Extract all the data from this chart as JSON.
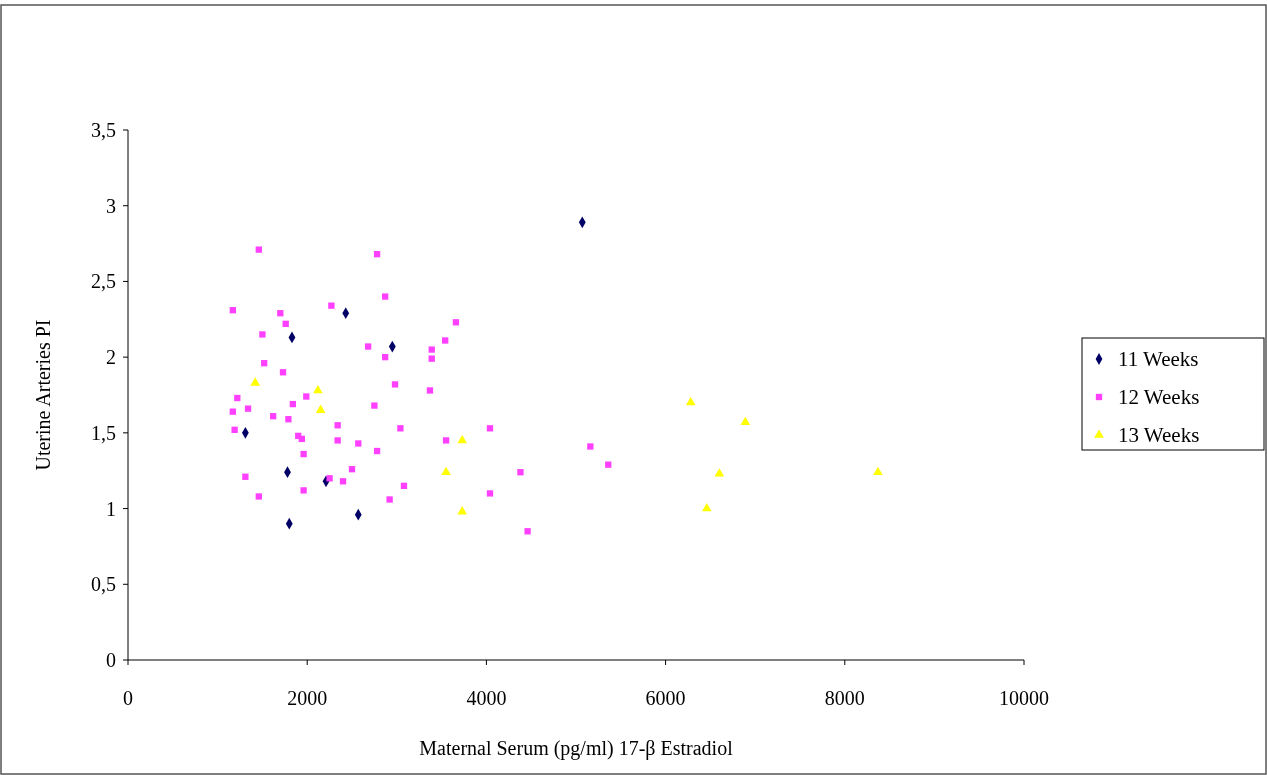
{
  "chart_data": {
    "type": "scatter",
    "xlabel": "Maternal Serum (pg/ml) 17-β Estradiol",
    "ylabel": "Uterine Arteries PI",
    "xlim": [
      0,
      10000
    ],
    "xticks": [
      0,
      2000,
      4000,
      6000,
      8000,
      10000
    ],
    "ylim": [
      0,
      3.5
    ],
    "yticks": [
      0,
      {
        "value": 0.5,
        "label": "0,5"
      },
      1,
      {
        "value": 1.5,
        "label": "1,5"
      },
      2,
      {
        "value": 2.5,
        "label": "2,5"
      },
      3,
      {
        "value": 3.5,
        "label": "3,5"
      }
    ],
    "grid": false,
    "legend": "right",
    "series": [
      {
        "name": "11 Weeks",
        "color": "#000066",
        "marker": "diamond",
        "x": [
          5070,
          2430,
          1830,
          2950,
          1310,
          1780,
          2210,
          1800,
          2570
        ],
        "values": [
          2.89,
          2.29,
          2.13,
          2.07,
          1.5,
          1.24,
          1.18,
          0.9,
          0.96
        ]
      },
      {
        "name": "12 Weeks",
        "color": "#ff40ff",
        "marker": "square",
        "x": [
          1460,
          2780,
          1170,
          2270,
          2870,
          1700,
          1760,
          3660,
          1500,
          2680,
          3540,
          3390,
          3390,
          2870,
          1520,
          1730,
          2980,
          3370,
          1990,
          1220,
          1840,
          2750,
          1340,
          1170,
          1620,
          1790,
          2340,
          3040,
          4040,
          1190,
          1900,
          1940,
          2340,
          2570,
          3550,
          5160,
          2780,
          1960,
          5360,
          2500,
          4380,
          1310,
          2250,
          2400,
          3080,
          1960,
          1460,
          4040,
          2920,
          4460
        ],
        "values": [
          2.71,
          2.68,
          2.31,
          2.34,
          2.4,
          2.29,
          2.22,
          2.23,
          2.15,
          2.07,
          2.11,
          2.05,
          1.99,
          2.0,
          1.96,
          1.9,
          1.82,
          1.78,
          1.74,
          1.73,
          1.69,
          1.68,
          1.66,
          1.64,
          1.61,
          1.59,
          1.55,
          1.53,
          1.53,
          1.52,
          1.48,
          1.46,
          1.45,
          1.43,
          1.45,
          1.41,
          1.38,
          1.36,
          1.29,
          1.26,
          1.24,
          1.21,
          1.2,
          1.18,
          1.15,
          1.12,
          1.08,
          1.1,
          1.06,
          0.85
        ]
      },
      {
        "name": "13 Weeks",
        "color": "#ffff00",
        "marker": "triangle",
        "x": [
          1420,
          2120,
          2150,
          3730,
          3550,
          3730,
          6280,
          6600,
          6890,
          6460,
          8370
        ],
        "values": [
          1.83,
          1.78,
          1.65,
          1.45,
          1.24,
          0.98,
          1.7,
          1.23,
          1.57,
          1.0,
          1.24
        ]
      }
    ]
  }
}
